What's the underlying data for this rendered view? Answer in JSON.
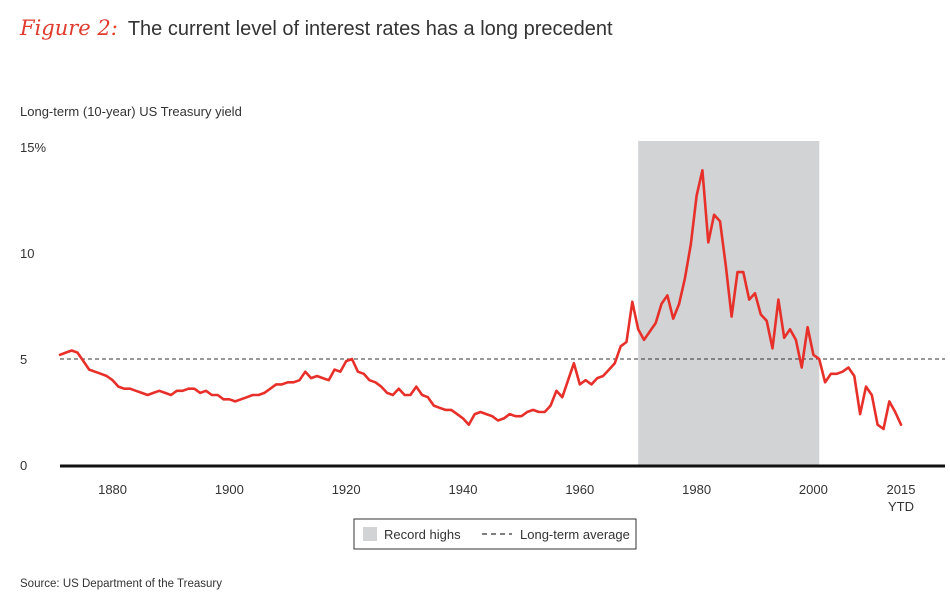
{
  "figure": {
    "label": "Figure 2:",
    "title": "The current level of interest rates has a long precedent",
    "source": "Source: US Department of the Treasury"
  },
  "colors": {
    "line": "#e8302a",
    "shade": "#d2d3d5",
    "axis": "#111111",
    "average": "#333333"
  },
  "chart_data": {
    "type": "line",
    "ylabel": "Long-term (10-year) US Treasury yield",
    "ylim": [
      0,
      15
    ],
    "xlim": [
      1871,
      2015
    ],
    "yticks": [
      {
        "value": 0,
        "label": "0"
      },
      {
        "value": 5,
        "label": "5"
      },
      {
        "value": 10,
        "label": "10"
      },
      {
        "value": 15,
        "label": "15%"
      }
    ],
    "xticks": [
      {
        "value": 1880,
        "label": "1880"
      },
      {
        "value": 1900,
        "label": "1900"
      },
      {
        "value": 1920,
        "label": "1920"
      },
      {
        "value": 1940,
        "label": "1940"
      },
      {
        "value": 1960,
        "label": "1960"
      },
      {
        "value": 1980,
        "label": "1980"
      },
      {
        "value": 2000,
        "label": "2000"
      },
      {
        "value": 2015,
        "label": "2015",
        "sublabel": "YTD"
      }
    ],
    "shaded_region": {
      "name": "Record highs",
      "x": [
        1970,
        2001
      ]
    },
    "average_line": {
      "name": "Long-term average",
      "y": 5
    },
    "legend_position": "bottom-center",
    "grid": false,
    "series": [
      {
        "x": [
          1871,
          1872,
          1873,
          1874,
          1875,
          1876,
          1877,
          1878,
          1879,
          1880,
          1881,
          1882,
          1883,
          1884,
          1885,
          1886,
          1887,
          1888,
          1889,
          1890,
          1891,
          1892,
          1893,
          1894,
          1895,
          1896,
          1897,
          1898,
          1899,
          1900,
          1901,
          1902,
          1903,
          1904,
          1905,
          1906,
          1907,
          1908,
          1909,
          1910,
          1911,
          1912,
          1913,
          1914,
          1915,
          1916,
          1917,
          1918,
          1919,
          1920,
          1921,
          1922,
          1923,
          1924,
          1925,
          1926,
          1927,
          1928,
          1929,
          1930,
          1931,
          1932,
          1933,
          1934,
          1935,
          1936,
          1937,
          1938,
          1939,
          1940,
          1941,
          1942,
          1943,
          1944,
          1945,
          1946,
          1947,
          1948,
          1949,
          1950,
          1951,
          1952,
          1953,
          1954,
          1955,
          1956,
          1957,
          1958,
          1959,
          1960,
          1961,
          1962,
          1963,
          1964,
          1965,
          1966,
          1967,
          1968,
          1969,
          1970,
          1971,
          1972,
          1973,
          1974,
          1975,
          1976,
          1977,
          1978,
          1979,
          1980,
          1981,
          1982,
          1983,
          1984,
          1985,
          1986,
          1987,
          1988,
          1989,
          1990,
          1991,
          1992,
          1993,
          1994,
          1995,
          1996,
          1997,
          1998,
          1999,
          2000,
          2001,
          2002,
          2003,
          2004,
          2005,
          2006,
          2007,
          2008,
          2009,
          2010,
          2011,
          2012,
          2013,
          2014,
          2015
        ],
        "values": [
          5.2,
          5.3,
          5.4,
          5.3,
          4.9,
          4.5,
          4.4,
          4.3,
          4.2,
          4.0,
          3.7,
          3.6,
          3.6,
          3.5,
          3.4,
          3.3,
          3.4,
          3.5,
          3.4,
          3.3,
          3.5,
          3.5,
          3.6,
          3.6,
          3.4,
          3.5,
          3.3,
          3.3,
          3.1,
          3.1,
          3.0,
          3.1,
          3.2,
          3.3,
          3.3,
          3.4,
          3.6,
          3.8,
          3.8,
          3.9,
          3.9,
          4.0,
          4.4,
          4.1,
          4.2,
          4.1,
          4.0,
          4.5,
          4.4,
          4.9,
          5.0,
          4.4,
          4.3,
          4.0,
          3.9,
          3.7,
          3.4,
          3.3,
          3.6,
          3.3,
          3.3,
          3.7,
          3.3,
          3.2,
          2.8,
          2.7,
          2.6,
          2.6,
          2.4,
          2.2,
          1.9,
          2.4,
          2.5,
          2.4,
          2.3,
          2.1,
          2.2,
          2.4,
          2.3,
          2.3,
          2.5,
          2.6,
          2.5,
          2.5,
          2.8,
          3.5,
          3.2,
          4.0,
          4.8,
          3.8,
          4.0,
          3.8,
          4.1,
          4.2,
          4.5,
          4.8,
          5.6,
          5.8,
          7.7,
          6.4,
          5.9,
          6.3,
          6.7,
          7.6,
          8.0,
          6.9,
          7.6,
          8.8,
          10.4,
          12.7,
          13.9,
          10.5,
          11.8,
          11.5,
          9.4,
          7.0,
          9.1,
          9.1,
          7.8,
          8.1,
          7.1,
          6.8,
          5.5,
          7.8,
          6.0,
          6.4,
          5.9,
          4.6,
          6.5,
          5.2,
          5.0,
          3.9,
          4.3,
          4.3,
          4.4,
          4.6,
          4.2,
          2.4,
          3.7,
          3.3,
          1.9,
          1.7,
          3.0,
          2.5,
          1.9
        ]
      }
    ]
  }
}
